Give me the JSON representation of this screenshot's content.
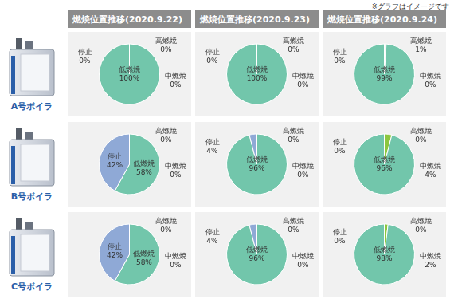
{
  "note": "※グラフはイメージです",
  "columns": [
    "燃焼位置推移(2020.9.22)",
    "燃焼位置推移(2020.9.23)",
    "燃焼位置推移(2020.9.24)"
  ],
  "rows": [
    "A号ボイラ",
    "B号ボイラ",
    "C号ボイラ"
  ],
  "chart_data": [
    {
      "type": "pie",
      "categories": [
        "高燃焼",
        "中燃焼",
        "低燃焼",
        "停止"
      ],
      "values": [
        0,
        0,
        100,
        0
      ],
      "value_labels": [
        "0%",
        "0%",
        "100%",
        "0%"
      ],
      "colors": [
        "#f4faf7",
        "#8cc63f",
        "#72c6ab",
        "#8fa9d6"
      ],
      "data_labels": true
    },
    {
      "type": "pie",
      "categories": [
        "高燃焼",
        "中燃焼",
        "低燃焼",
        "停止"
      ],
      "values": [
        0,
        0,
        100,
        0
      ],
      "value_labels": [
        "0%",
        "0%",
        "100%",
        "0%"
      ],
      "colors": [
        "#f4faf7",
        "#8cc63f",
        "#72c6ab",
        "#8fa9d6"
      ],
      "data_labels": true
    },
    {
      "type": "pie",
      "categories": [
        "高燃焼",
        "中燃焼",
        "低燃焼",
        "停止"
      ],
      "values": [
        1,
        0,
        99,
        0
      ],
      "value_labels": [
        "1%",
        "0%",
        "99%",
        "0%"
      ],
      "colors": [
        "#f4faf7",
        "#8cc63f",
        "#72c6ab",
        "#8fa9d6"
      ],
      "data_labels": true
    },
    {
      "type": "pie",
      "categories": [
        "高燃焼",
        "中燃焼",
        "低燃焼",
        "停止"
      ],
      "values": [
        0,
        0,
        58,
        42
      ],
      "value_labels": [
        "0%",
        "0%",
        "58%",
        "42%"
      ],
      "colors": [
        "#f4faf7",
        "#8cc63f",
        "#72c6ab",
        "#8fa9d6"
      ],
      "data_labels": true
    },
    {
      "type": "pie",
      "categories": [
        "高燃焼",
        "中燃焼",
        "低燃焼",
        "停止"
      ],
      "values": [
        0,
        0,
        96,
        4
      ],
      "value_labels": [
        "0%",
        "0%",
        "96%",
        "4%"
      ],
      "colors": [
        "#f4faf7",
        "#8cc63f",
        "#72c6ab",
        "#8fa9d6"
      ],
      "data_labels": true
    },
    {
      "type": "pie",
      "categories": [
        "高燃焼",
        "中燃焼",
        "低燃焼",
        "停止"
      ],
      "values": [
        0,
        4,
        96,
        0
      ],
      "value_labels": [
        "0%",
        "4%",
        "96%",
        "0%"
      ],
      "colors": [
        "#f4faf7",
        "#8cc63f",
        "#72c6ab",
        "#8fa9d6"
      ],
      "data_labels": true
    },
    {
      "type": "pie",
      "categories": [
        "高燃焼",
        "中燃焼",
        "低燃焼",
        "停止"
      ],
      "values": [
        0,
        0,
        58,
        42
      ],
      "value_labels": [
        "0%",
        "0%",
        "58%",
        "42%"
      ],
      "colors": [
        "#f4faf7",
        "#8cc63f",
        "#72c6ab",
        "#8fa9d6"
      ],
      "data_labels": true
    },
    {
      "type": "pie",
      "categories": [
        "高燃焼",
        "中燃焼",
        "低燃焼",
        "停止"
      ],
      "values": [
        0,
        0,
        96,
        4
      ],
      "value_labels": [
        "0%",
        "0%",
        "96%",
        "4%"
      ],
      "colors": [
        "#f4faf7",
        "#8cc63f",
        "#72c6ab",
        "#8fa9d6"
      ],
      "data_labels": true
    },
    {
      "type": "pie",
      "categories": [
        "高燃焼",
        "中燃焼",
        "低燃焼",
        "停止"
      ],
      "values": [
        0,
        2,
        98,
        0
      ],
      "value_labels": [
        "0%",
        "2%",
        "98%",
        "0%"
      ],
      "colors": [
        "#f4faf7",
        "#8cc63f",
        "#72c6ab",
        "#8fa9d6"
      ],
      "data_labels": true
    }
  ]
}
